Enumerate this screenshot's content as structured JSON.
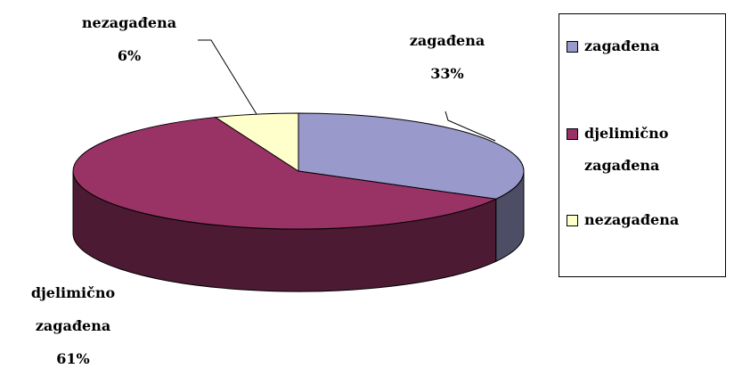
{
  "chart_data": {
    "type": "pie3d",
    "categories": [
      "zagađena",
      "djelimično zagađena",
      "nezagađena"
    ],
    "values": [
      33,
      61,
      6
    ],
    "value_labels": [
      "33%",
      "61%",
      "6%"
    ],
    "colors": [
      "#9999cc",
      "#993366",
      "#ffffcc"
    ],
    "legend": "right"
  }
}
